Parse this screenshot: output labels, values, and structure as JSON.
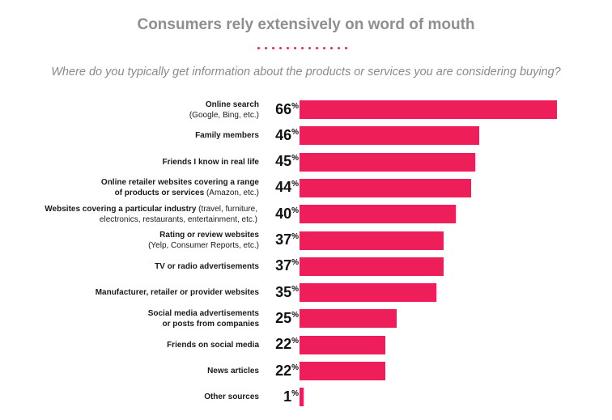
{
  "header": {
    "title": "Consumers rely extensively on word of mouth",
    "subtitle": "Where do you typically get information about the products or services you are considering buying?"
  },
  "colors": {
    "bar": "#ee1e5a",
    "title": "#8f8f8f",
    "dots": "#e8235b"
  },
  "chart_data": {
    "type": "bar",
    "orientation": "horizontal",
    "title": "Consumers rely extensively on word of mouth",
    "subtitle": "Where do you typically get information about the products or services you are considering buying?",
    "unit": "%",
    "xlim": [
      0,
      66
    ],
    "categories": [
      {
        "main": "Online search",
        "sub": "(Google, Bing, etc.)",
        "value": 66
      },
      {
        "main": "Family members",
        "sub": "",
        "value": 46
      },
      {
        "main": "Friends I know in real life",
        "sub": "",
        "value": 45
      },
      {
        "main": "Online retailer websites covering a range of products or services",
        "sub": "(Amazon, etc.)",
        "value": 44
      },
      {
        "main": "Websites covering a particular industry",
        "sub": "(travel, furniture, electronics, restaurants, entertainment, etc.)",
        "value": 40
      },
      {
        "main": "Rating or review websites",
        "sub": "(Yelp, Consumer Reports, etc.)",
        "value": 37
      },
      {
        "main": "TV or radio advertisements",
        "sub": "",
        "value": 37
      },
      {
        "main": "Manufacturer, retailer or provider websites",
        "sub": "",
        "value": 35
      },
      {
        "main": "Social media advertisements or posts from companies",
        "sub": "",
        "value": 25
      },
      {
        "main": "Friends on social media",
        "sub": "",
        "value": 22
      },
      {
        "main": "News articles",
        "sub": "",
        "value": 22
      },
      {
        "main": "Other sources",
        "sub": "",
        "value": 1
      }
    ]
  }
}
